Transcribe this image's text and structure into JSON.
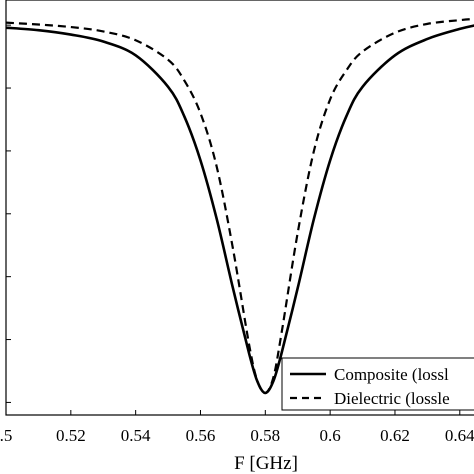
{
  "chart_data": {
    "type": "line",
    "xlabel": "F [GHz]",
    "ylabel": "",
    "title": "",
    "xlim": [
      0.5,
      0.645
    ],
    "ylim": [
      -0.062,
      0.004
    ],
    "x_ticks": [
      0.5,
      0.52,
      0.54,
      0.56,
      0.58,
      0.6,
      0.62,
      0.64
    ],
    "x_tick_labels": [
      ".5",
      "0.52",
      "0.54",
      "0.56",
      "0.58",
      "0.6",
      "0.62",
      "0.64"
    ],
    "y_ticks_unlabeled": [
      0,
      -0.01,
      -0.02,
      -0.03,
      -0.04,
      -0.05,
      -0.06
    ],
    "legend_placement": "bottom-right",
    "grid": false,
    "series": [
      {
        "name": "Composite (lossl",
        "style": "solid",
        "color": "#000000",
        "x": [
          0.5,
          0.51,
          0.52,
          0.53,
          0.54,
          0.55,
          0.555,
          0.56,
          0.565,
          0.57,
          0.575,
          0.5775,
          0.58,
          0.5825,
          0.585,
          0.59,
          0.595,
          0.6,
          0.605,
          0.61,
          0.62,
          0.63,
          0.64,
          0.645
        ],
        "y": [
          -0.0004,
          -0.0008,
          -0.0015,
          -0.0026,
          -0.0048,
          -0.0098,
          -0.0145,
          -0.0215,
          -0.0308,
          -0.0418,
          -0.0522,
          -0.0566,
          -0.0585,
          -0.0566,
          -0.0522,
          -0.0418,
          -0.0308,
          -0.0215,
          -0.0145,
          -0.0098,
          -0.0048,
          -0.0022,
          -0.0006,
          0.0
        ]
      },
      {
        "name": "Dielectric (lossle",
        "style": "dashed",
        "color": "#000000",
        "x": [
          0.5,
          0.51,
          0.52,
          0.53,
          0.54,
          0.55,
          0.555,
          0.56,
          0.565,
          0.57,
          0.575,
          0.5775,
          0.58,
          0.5825,
          0.585,
          0.59,
          0.595,
          0.6,
          0.605,
          0.61,
          0.62,
          0.63,
          0.64,
          0.645
        ],
        "y": [
          0.0004,
          0.0001,
          -0.0003,
          -0.001,
          -0.0024,
          -0.0055,
          -0.0088,
          -0.014,
          -0.0225,
          -0.0355,
          -0.0508,
          -0.0565,
          -0.0585,
          -0.056,
          -0.049,
          -0.033,
          -0.02,
          -0.0118,
          -0.0072,
          -0.0042,
          -0.0012,
          0.0002,
          0.0008,
          0.001
        ]
      }
    ]
  }
}
